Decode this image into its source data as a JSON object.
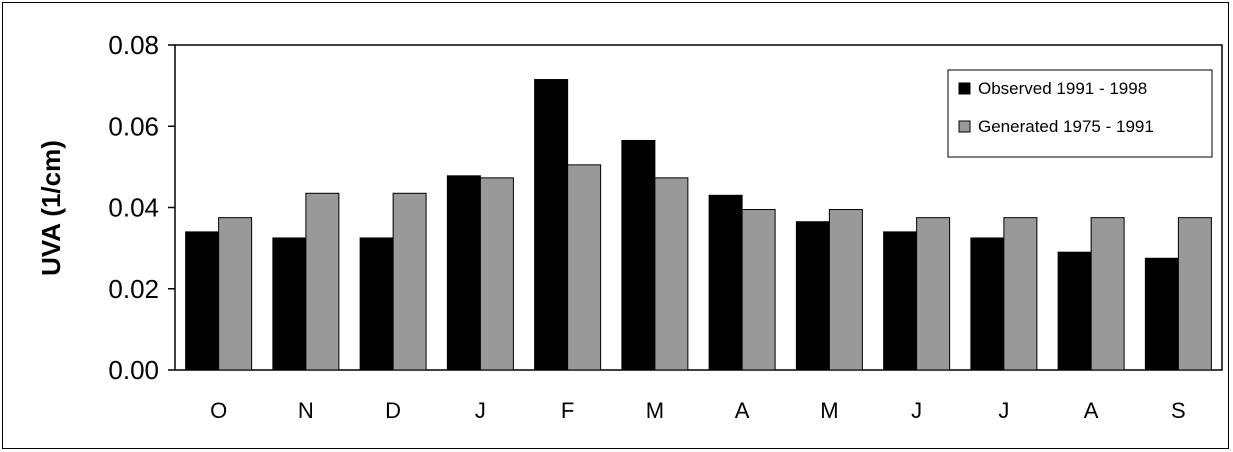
{
  "chart_data": {
    "type": "bar",
    "title": "",
    "xlabel": "",
    "ylabel": "UVA (1/cm)",
    "ylim": [
      0,
      0.08
    ],
    "yticks": [
      "0.00",
      "0.02",
      "0.04",
      "0.06",
      "0.08"
    ],
    "ytick_values": [
      0,
      0.02,
      0.04,
      0.06,
      0.08
    ],
    "categories": [
      "O",
      "N",
      "D",
      "J",
      "F",
      "M",
      "A",
      "M",
      "J",
      "J",
      "A",
      "S"
    ],
    "grid": false,
    "legend_position": "top-right",
    "series": [
      {
        "name": "Observed 1991 - 1998",
        "color": "#000000",
        "values": [
          0.034,
          0.0325,
          0.0325,
          0.0478,
          0.0715,
          0.0565,
          0.043,
          0.0365,
          0.034,
          0.0325,
          0.029,
          0.0275
        ]
      },
      {
        "name": "Generated 1975 - 1991",
        "color": "#999999",
        "values": [
          0.0375,
          0.0435,
          0.0435,
          0.0473,
          0.0505,
          0.0473,
          0.0395,
          0.0395,
          0.0375,
          0.0375,
          0.0375,
          0.0375
        ]
      }
    ]
  }
}
